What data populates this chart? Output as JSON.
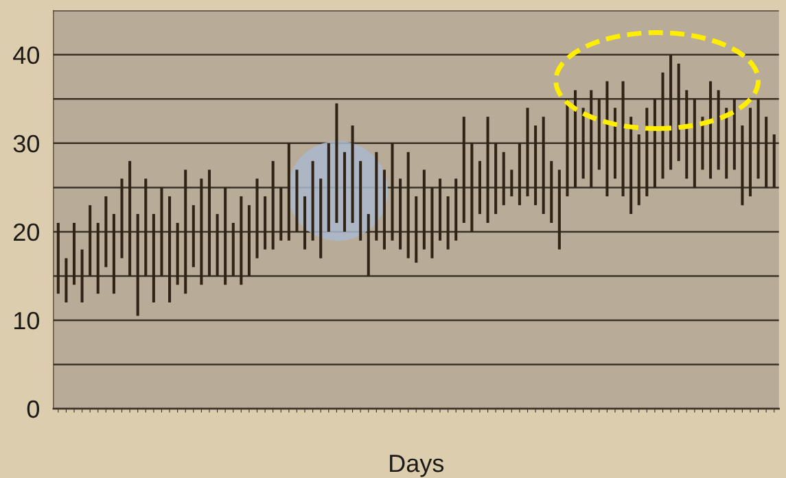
{
  "chart_data": {
    "type": "bar",
    "xlabel": "Days",
    "categories": [
      null,
      null,
      null,
      null,
      null,
      null,
      null,
      null,
      null,
      null,
      null,
      null,
      null,
      null,
      null,
      null,
      null,
      null,
      null,
      null,
      null,
      null,
      null,
      null,
      null,
      null,
      null,
      null,
      null,
      null,
      null,
      null,
      null,
      null,
      null,
      null,
      null,
      null,
      null,
      null,
      null,
      null,
      null,
      null,
      null,
      null,
      null,
      null,
      null,
      null,
      null,
      null,
      null,
      null,
      null,
      null,
      null,
      null,
      null,
      null,
      null,
      null,
      null,
      null,
      null,
      null,
      null,
      null,
      null,
      null,
      null,
      null,
      null,
      null,
      null,
      null,
      null,
      null,
      null,
      null,
      null,
      null,
      null,
      null,
      null,
      null,
      null,
      null,
      null,
      null,
      null
    ],
    "base": [
      13,
      12,
      14,
      12,
      15,
      13,
      16,
      13,
      17,
      15,
      10.5,
      15,
      12,
      15,
      12,
      14,
      13,
      16,
      14,
      15,
      15,
      14,
      15,
      14,
      15,
      17,
      18,
      18,
      19,
      19,
      20,
      18,
      19,
      17,
      20,
      21,
      20,
      21,
      19,
      15,
      19,
      18,
      19,
      18,
      17,
      16.5,
      18,
      17,
      19,
      18,
      19,
      21,
      20,
      22,
      21,
      22,
      23,
      24,
      23,
      24,
      23,
      22,
      21,
      18,
      24,
      25,
      26,
      25,
      27,
      24,
      26,
      24,
      22,
      23,
      24,
      25,
      26,
      27,
      28,
      26,
      25,
      27,
      26,
      27,
      26,
      27,
      23,
      24,
      26,
      25,
      25
    ],
    "values": [
      8,
      5,
      7,
      6,
      8,
      8,
      8,
      9,
      9,
      13,
      11.5,
      11,
      10,
      10,
      12,
      7,
      14,
      7,
      12,
      12,
      7,
      11,
      6,
      10,
      8,
      9,
      6,
      10,
      6,
      11,
      7,
      6,
      9,
      9,
      10,
      13.5,
      9,
      11,
      9,
      7,
      10,
      9,
      11,
      8,
      12,
      7.5,
      9,
      8,
      7,
      6,
      7,
      12,
      10,
      6,
      12,
      8,
      6,
      3,
      7,
      10,
      9,
      11,
      7,
      9,
      11,
      11,
      8,
      11,
      8,
      13,
      8,
      13,
      11,
      8,
      10,
      10,
      12,
      13,
      11,
      10,
      10,
      6,
      11,
      9,
      8,
      8,
      9,
      10,
      9,
      8,
      6
    ],
    "color": "#2e2314",
    "ylim": [
      0,
      45
    ],
    "yticks": [
      0,
      {
        "value": 5,
        "label": null
      },
      10,
      {
        "value": 15,
        "label": null
      },
      20,
      {
        "value": 25,
        "label": null
      },
      30,
      {
        "value": 35,
        "label": null
      },
      40,
      {
        "value": 45,
        "label": null
      }
    ],
    "grid": "y",
    "tick_labels": "y"
  }
}
